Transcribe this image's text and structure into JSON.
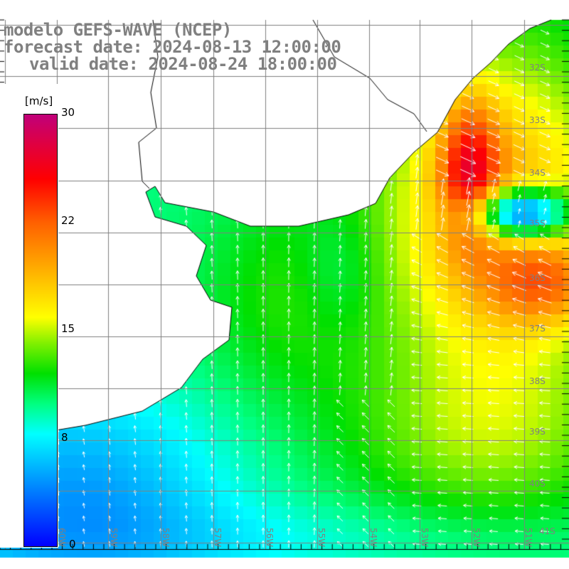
{
  "title": {
    "line1": "modelo GEFS-WAVE (NCEP)",
    "line2": "forecast date: 2024-08-13 12:00:00",
    "line3": "valid date: 2024-08-24 18:00:00"
  },
  "colorbar": {
    "unit": "[m/s]",
    "labels": [
      "30",
      "22",
      "15",
      "8",
      "0"
    ],
    "values": [
      30,
      22,
      15,
      8,
      0
    ],
    "colors": [
      "#c0007a",
      "#ff6000",
      "#c0ff00",
      "#00ffff",
      "#0000ff"
    ]
  },
  "lat_labels": [
    "32S",
    "33S",
    "34S",
    "35S",
    "36S",
    "37S",
    "38S",
    "39S",
    "40S",
    "41S"
  ],
  "lon_labels": [
    "61W",
    "60W",
    "59W",
    "58W",
    "57W",
    "56W",
    "55W",
    "54W",
    "53W",
    "52W",
    "51W"
  ],
  "colors": {
    "land": "#ffffff",
    "coast": "#000000",
    "grid": "#808080",
    "arrows": "#ffffff",
    "text": "#808080"
  }
}
